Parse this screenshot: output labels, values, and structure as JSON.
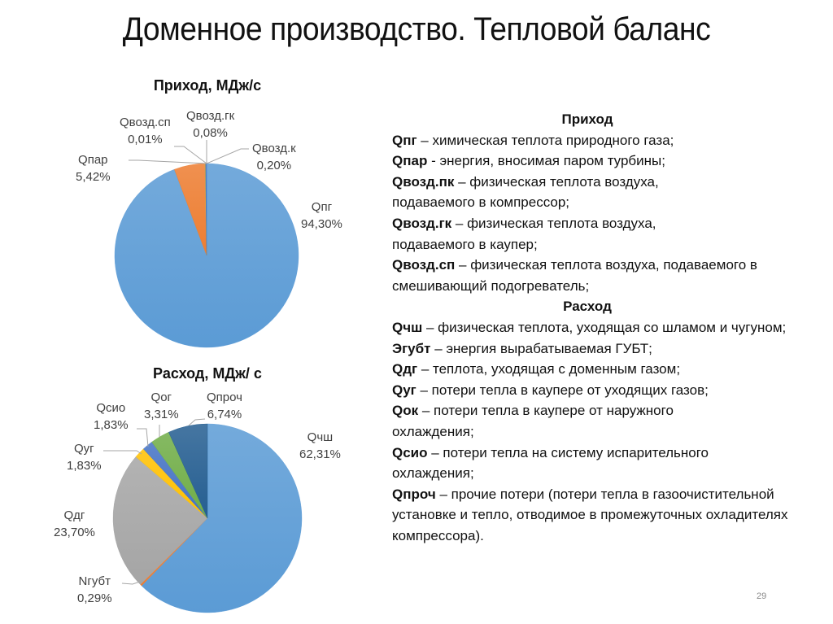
{
  "slide": {
    "title": "Доменное производство. Тепловой баланс",
    "page_number": "29"
  },
  "legend": {
    "income_header": "Приход",
    "income_items": [
      {
        "key": "Qпг",
        "sep": " – ",
        "text": "химическая теплота природного газа;"
      },
      {
        "key": "Qпар",
        "sep": " - ",
        "text": "энергия, вносимая паром турбины;"
      },
      {
        "key": "Qвозд.пк",
        "sep": " – ",
        "text": "физическая теплота воздуха, подаваемого в компрессор;"
      },
      {
        "key": "Qвозд.гк",
        "sep": " – ",
        "text": "физическая теплота воздуха, подаваемого в каупер;"
      },
      {
        "key": "Qвозд.сп",
        "sep": " – ",
        "text": "физическая теплота воздуха, подаваемого в смешивающий подогреватель;"
      }
    ],
    "outcome_header": "Расход",
    "outcome_items": [
      {
        "key": "Qчш",
        "sep": " – ",
        "text": "физическая теплота, уходящая со шламом и чугуном;"
      },
      {
        "key": "Эгубт",
        "sep": " – ",
        "text": "энергия вырабатываемая ГУБТ;"
      },
      {
        "key": "Qдг",
        "sep": " – ",
        "text": "теплота, уходящая с доменным газом;"
      },
      {
        "key": "Qуг",
        "sep": " – ",
        "text": "потери тепла в каупере от уходящих газов;"
      },
      {
        "key": "Qок",
        "sep": " – ",
        "text": "потери тепла в каупере от наружного охлаждения;"
      },
      {
        "key": "Qсио",
        "sep": " – ",
        "text": "потери тепла на систему испарительного охлаждения;"
      },
      {
        "key": "Qпроч",
        "sep": " – ",
        "text": "прочие потери (потери тепла в газоочистительной установке и тепло, отводимое в промежуточных охладителях компрессора)."
      }
    ]
  },
  "chart_data": [
    {
      "type": "pie",
      "title": "Приход, МДж/с",
      "categories": [
        "Qпг",
        "Qпар",
        "Qвозд.сп",
        "Qвозд.гк",
        "Qвозд.к"
      ],
      "values": [
        94.3,
        5.42,
        0.01,
        0.08,
        0.2
      ],
      "value_labels": [
        "94,30%",
        "5,42%",
        "0,01%",
        "0,08%",
        "0,20%"
      ],
      "colors": [
        "#5b9bd5",
        "#ed7d31",
        "#a5a5a5",
        "#ffc000",
        "#4472c4"
      ],
      "start_angle_deg": 0,
      "direction": "clockwise",
      "legend": "none (data labels on slices)"
    },
    {
      "type": "pie",
      "title": "Расход, МДж/ с",
      "categories": [
        "Qчш",
        "Nгубт",
        "Qдг",
        "Qуг",
        "Qсио",
        "Qог",
        "Qпроч"
      ],
      "values": [
        62.31,
        0.29,
        23.7,
        1.83,
        1.83,
        3.31,
        6.74
      ],
      "value_labels": [
        "62,31%",
        "0,29%",
        "23,70%",
        "1,83%",
        "1,83%",
        "3,31%",
        "6,74%"
      ],
      "colors": [
        "#5b9bd5",
        "#ed7d31",
        "#a5a5a5",
        "#ffc000",
        "#4472c4",
        "#70ad47",
        "#255e91"
      ],
      "start_angle_deg": 0,
      "direction": "clockwise",
      "legend": "none (data labels on slices)"
    }
  ]
}
